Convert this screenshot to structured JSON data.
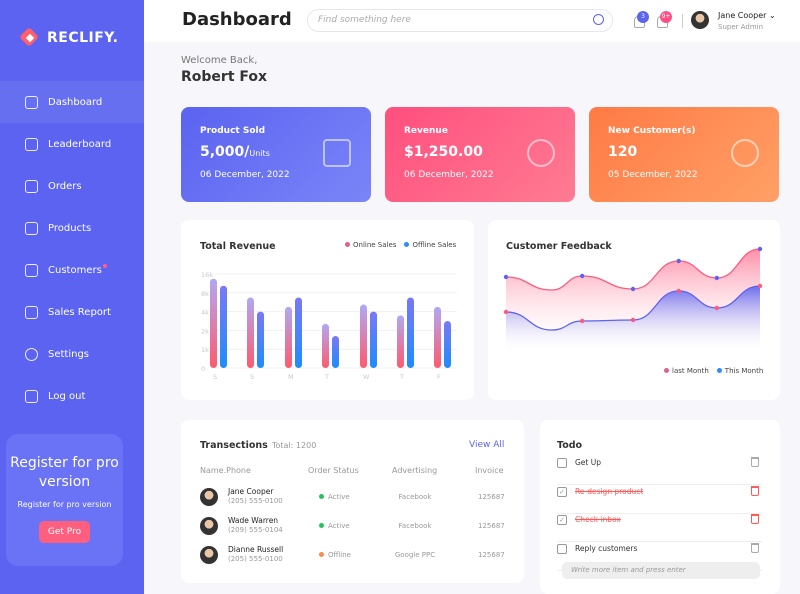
{
  "brand": "RECLIFY.",
  "sidebar": {
    "items": [
      {
        "label": "Dashboard"
      },
      {
        "label": "Leaderboard"
      },
      {
        "label": "Orders"
      },
      {
        "label": "Products"
      },
      {
        "label": "Customers"
      },
      {
        "label": "Sales Report"
      },
      {
        "label": "Settings"
      },
      {
        "label": "Log out"
      }
    ]
  },
  "promo": {
    "title": "Register for pro version",
    "subtitle": "Register for pro version",
    "button": "Get Pro"
  },
  "header": {
    "title": "Dashboard",
    "search_placeholder": "Find something here",
    "messages_count": "3",
    "notifications_count": "9+",
    "user_name": "Jane Cooper",
    "user_role": "Super Admin"
  },
  "welcome": {
    "greeting": "Welcome Back,",
    "name": "Robert Fox"
  },
  "cards": [
    {
      "label": "Product Sold",
      "value": "5,000/",
      "unit": "Units",
      "date": "06 December, 2022",
      "color": "#5b63f0"
    },
    {
      "label": "Revenue",
      "value": "$1,250.00",
      "unit": "",
      "date": "06 December, 2022",
      "color": "#ff5a7e"
    },
    {
      "label": "New Customer(s)",
      "value": "120",
      "unit": "",
      "date": "05 December, 2022",
      "color": "#ff8a4c"
    }
  ],
  "chart_data": [
    {
      "type": "bar",
      "title": "Total Revenue",
      "categories": [
        "S",
        "S",
        "M",
        "T",
        "W",
        "T",
        "F"
      ],
      "yticks": [
        "16k",
        "8k",
        "4k",
        "2k",
        "1k",
        "0"
      ],
      "ytick_values": [
        16000,
        8000,
        4000,
        2000,
        1000,
        0
      ],
      "series": [
        {
          "name": "Online Sales",
          "color": "#ff5a6e",
          "values": [
            14000,
            7000,
            5000,
            2700,
            5500,
            3600,
            5000
          ]
        },
        {
          "name": "Offline Sales",
          "color": "#2b8cff",
          "values": [
            11000,
            4000,
            7000,
            1700,
            4000,
            7000,
            3000
          ]
        }
      ]
    },
    {
      "type": "area",
      "title": "Customer Feedback",
      "x": [
        0,
        18,
        30,
        50,
        68,
        83,
        100
      ],
      "series": [
        {
          "name": "last Month",
          "color": "#ff5a7e",
          "values": [
            76,
            63,
            77,
            64,
            92,
            75,
            104
          ]
        },
        {
          "name": "This Month",
          "color": "#5b63f0",
          "values": [
            41,
            23,
            32,
            33,
            62,
            45,
            67
          ]
        }
      ]
    }
  ],
  "transactions": {
    "title": "Transections",
    "total": "Total: 1200",
    "view_all": "View All",
    "columns": [
      "Name.Phone",
      "Order Status",
      "Advertising",
      "Invoice"
    ],
    "rows": [
      {
        "name": "Jane Cooper",
        "phone": "(205) 555-0100",
        "status": "Active",
        "status_color": "#22c55e",
        "ad": "Facebook",
        "invoice": "125687"
      },
      {
        "name": "Wade Warren",
        "phone": "(209) 555-0104",
        "status": "Active",
        "status_color": "#22c55e",
        "ad": "Facebook",
        "invoice": "125687"
      },
      {
        "name": "Dianne Russell",
        "phone": "(205) 555-0100",
        "status": "Offline",
        "status_color": "#ff8a4c",
        "ad": "Google PPC",
        "invoice": "125687"
      }
    ]
  },
  "todo": {
    "title": "Todo",
    "items": [
      {
        "text": "Get Up",
        "done": false
      },
      {
        "text": "Re-design product",
        "done": true
      },
      {
        "text": "Check inbox",
        "done": true
      },
      {
        "text": "Reply customers",
        "done": false
      }
    ],
    "placeholder": "Write more item and press enter"
  }
}
